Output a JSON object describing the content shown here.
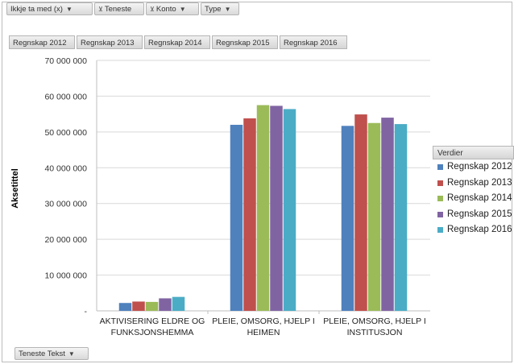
{
  "filters": {
    "ikkje": {
      "label": "Ikkje ta med (x)",
      "icon": "chevron-down-icon"
    },
    "teneste": {
      "label": "Teneste",
      "icon": "filter-icon"
    },
    "konto": {
      "label": "Konto",
      "icon": "filter-icon"
    },
    "type": {
      "label": "Type",
      "icon": "chevron-down-icon"
    }
  },
  "field_button_bottom": {
    "label": "Teneste  Tekst",
    "icon": "chevron-down-icon"
  },
  "legend_header": "Verdier",
  "colors": {
    "Regnskap 2012": "#4F81BD",
    "Regnskap 2013": "#C0504D",
    "Regnskap 2014": "#9BBB59",
    "Regnskap 2015": "#8064A2",
    "Regnskap 2016": "#4BACC6"
  },
  "chart_data": {
    "type": "bar",
    "categories": [
      [
        "AKTIVISERING ELDRE OG",
        "FUNKSJONSHEMMA"
      ],
      [
        "PLEIE, OMSORG, HJELP I",
        "HEIMEN"
      ],
      [
        "PLEIE, OMSORG, HJELP I",
        "INSTITUSJON"
      ]
    ],
    "series": [
      {
        "name": "Regnskap 2012",
        "values": [
          2200000,
          52000000,
          51700000
        ]
      },
      {
        "name": "Regnskap 2013",
        "values": [
          2600000,
          53800000,
          54900000
        ]
      },
      {
        "name": "Regnskap 2014",
        "values": [
          2500000,
          57500000,
          52500000
        ]
      },
      {
        "name": "Regnskap 2015",
        "values": [
          3500000,
          57300000,
          54000000
        ]
      },
      {
        "name": "Regnskap 2016",
        "values": [
          3900000,
          56400000,
          52200000
        ]
      }
    ],
    "ylabel": "Aksetittel",
    "ylim": [
      0,
      70000000
    ],
    "yticks": [
      {
        "value": 0,
        "label": "-"
      },
      {
        "value": 10000000,
        "label": "10 000 000"
      },
      {
        "value": 20000000,
        "label": "20 000 000"
      },
      {
        "value": 30000000,
        "label": "30 000 000"
      },
      {
        "value": 40000000,
        "label": "40 000 000"
      },
      {
        "value": 50000000,
        "label": "50 000 000"
      },
      {
        "value": 60000000,
        "label": "60 000 000"
      },
      {
        "value": 70000000,
        "label": "70 000 000"
      }
    ],
    "grid": true,
    "legend": "right"
  }
}
